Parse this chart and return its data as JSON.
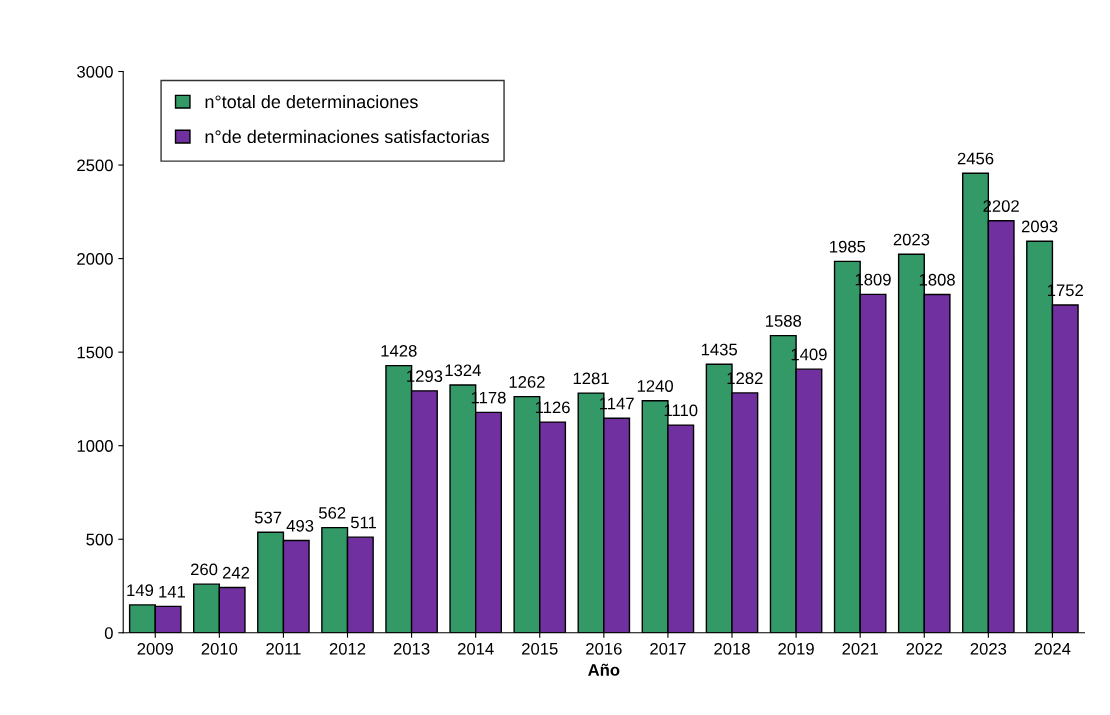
{
  "chart_data": {
    "type": "bar",
    "xlabel": "Año",
    "categories": [
      "2009",
      "2010",
      "2011",
      "2012",
      "2013",
      "2014",
      "2015",
      "2016",
      "2017",
      "2018",
      "2019",
      "2021",
      "2022",
      "2023",
      "2024"
    ],
    "series": [
      {
        "name": "n°total de determinaciones",
        "color": "#339966",
        "values": [
          149,
          260,
          537,
          562,
          1428,
          1324,
          1262,
          1281,
          1240,
          1435,
          1588,
          1985,
          2023,
          2456,
          2093
        ]
      },
      {
        "name": "n°de determinaciones satisfactorias",
        "color": "#7030a0",
        "values": [
          141,
          242,
          493,
          511,
          1293,
          1178,
          1126,
          1147,
          1110,
          1282,
          1409,
          1809,
          1808,
          2202,
          1752
        ]
      }
    ],
    "ylim": [
      0,
      3000
    ],
    "yticks": [
      0,
      500,
      1000,
      1500,
      2000,
      2500,
      3000
    ],
    "data_labels": true,
    "legend": "top left",
    "grid": false
  }
}
